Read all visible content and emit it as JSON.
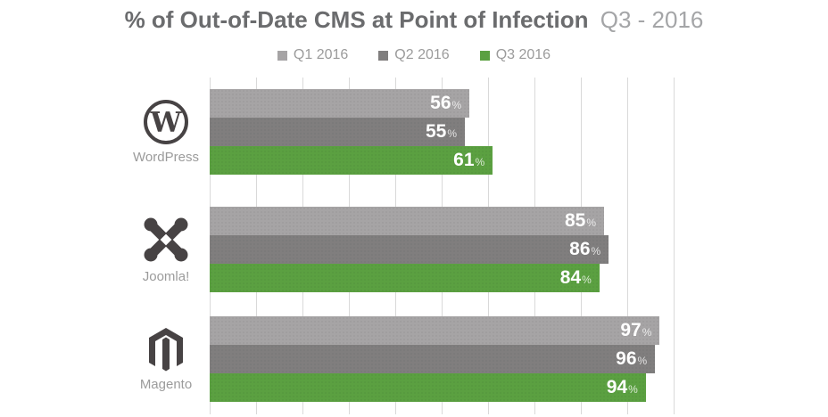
{
  "header": {
    "title_bold": "% of Out-of-Date CMS at Point of Infection",
    "title_light": "Q3 - 2016"
  },
  "colors": {
    "q1_bar": "#a6a4a5",
    "q2_bar": "#807e7e",
    "q3_bar": "#5ba041",
    "gridline": "#d9d9d9",
    "title_primary": "#6b6c6e",
    "title_secondary": "#a4a5a7",
    "label_gray": "#9b9b9b",
    "icon_gray": "#474344",
    "value_text": "#ffffff"
  },
  "chart_data": {
    "type": "bar",
    "orientation": "horizontal",
    "title": "% of Out-of-Date CMS at Point of Infection Q3 - 2016",
    "categories": [
      "WordPress",
      "Joomla!",
      "Magento"
    ],
    "series": [
      {
        "name": "Q1 2016",
        "color": "#a6a4a5",
        "values": [
          56,
          85,
          97
        ]
      },
      {
        "name": "Q2 2016",
        "color": "#807e7e",
        "values": [
          55,
          86,
          96
        ]
      },
      {
        "name": "Q3 2016",
        "color": "#5ba041",
        "values": [
          61,
          84,
          94
        ]
      }
    ],
    "xlim": [
      0,
      100
    ],
    "gridline_step_percent": 10,
    "grid": "vertical",
    "legend_position": "top-center",
    "value_suffix": "%",
    "value_labels": "inside-end"
  }
}
